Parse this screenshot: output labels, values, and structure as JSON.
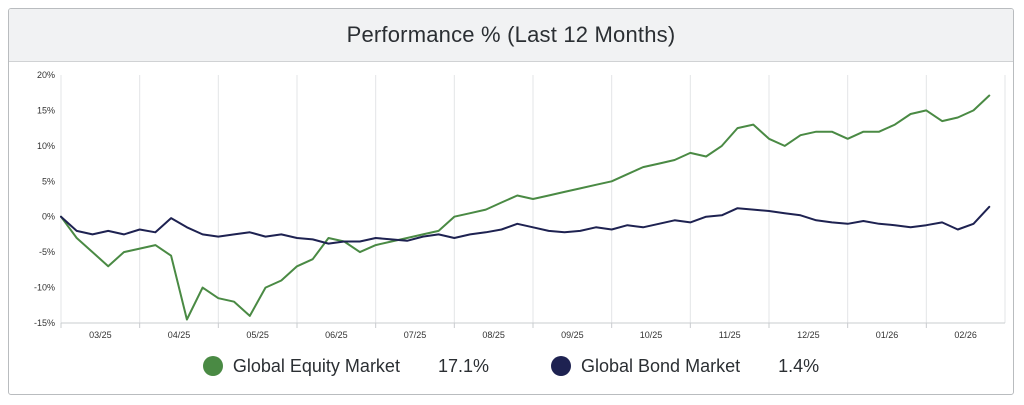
{
  "chart_data": {
    "type": "line",
    "title": "Performance % (Last 12 Months)",
    "xlabel": "",
    "ylabel": "",
    "ylim": [
      -15,
      20
    ],
    "yticks": [
      "20%",
      "15%",
      "10%",
      "5%",
      "0%",
      "-5%",
      "-10%",
      "-15%"
    ],
    "ytick_values": [
      20,
      15,
      10,
      5,
      0,
      -5,
      -10,
      -15
    ],
    "xtick_labels": [
      "03/25",
      "04/25",
      "05/25",
      "06/25",
      "07/25",
      "08/25",
      "09/25",
      "10/25",
      "11/25",
      "12/25",
      "01/26",
      "02/26"
    ],
    "grid": "vertical",
    "legend_position": "bottom",
    "series": [
      {
        "name": "Global Equity Market",
        "color": "#4a8a44",
        "final_label": "17.1%",
        "x": [
          0,
          0.2,
          0.4,
          0.6,
          0.8,
          1.0,
          1.2,
          1.4,
          1.6,
          1.8,
          2.0,
          2.2,
          2.4,
          2.6,
          2.8,
          3.0,
          3.2,
          3.4,
          3.6,
          3.8,
          4.0,
          4.2,
          4.4,
          4.6,
          4.8,
          5.0,
          5.2,
          5.4,
          5.6,
          5.8,
          6.0,
          6.2,
          6.4,
          6.6,
          6.8,
          7.0,
          7.2,
          7.4,
          7.6,
          7.8,
          8.0,
          8.2,
          8.4,
          8.6,
          8.8,
          9.0,
          9.2,
          9.4,
          9.6,
          9.8,
          10.0,
          10.2,
          10.4,
          10.6,
          10.8,
          11.0,
          11.2,
          11.4,
          11.6,
          11.8
        ],
        "y": [
          0,
          -3,
          -5,
          -7,
          -5,
          -4.5,
          -4,
          -5.5,
          -14.5,
          -10,
          -11.5,
          -12,
          -14,
          -10,
          -9,
          -7,
          -6,
          -3,
          -3.5,
          -5,
          -4,
          -3.5,
          -3,
          -2.5,
          -2,
          0,
          0.5,
          1,
          2,
          3,
          2.5,
          3,
          3.5,
          4,
          4.5,
          5,
          6,
          7,
          7.5,
          8,
          9,
          8.5,
          10,
          12.5,
          13,
          11,
          10,
          11.5,
          12,
          12,
          11,
          12,
          12,
          13,
          14.5,
          15,
          13.5,
          14,
          15,
          17.1
        ]
      },
      {
        "name": "Global Bond Market",
        "color": "#1e2251",
        "final_label": "1.4%",
        "x": [
          0,
          0.2,
          0.4,
          0.6,
          0.8,
          1.0,
          1.2,
          1.4,
          1.6,
          1.8,
          2.0,
          2.2,
          2.4,
          2.6,
          2.8,
          3.0,
          3.2,
          3.4,
          3.6,
          3.8,
          4.0,
          4.2,
          4.4,
          4.6,
          4.8,
          5.0,
          5.2,
          5.4,
          5.6,
          5.8,
          6.0,
          6.2,
          6.4,
          6.6,
          6.8,
          7.0,
          7.2,
          7.4,
          7.6,
          7.8,
          8.0,
          8.2,
          8.4,
          8.6,
          8.8,
          9.0,
          9.2,
          9.4,
          9.6,
          9.8,
          10.0,
          10.2,
          10.4,
          10.6,
          10.8,
          11.0,
          11.2,
          11.4,
          11.6,
          11.8
        ],
        "y": [
          0,
          -2,
          -2.5,
          -2,
          -2.5,
          -1.8,
          -2.2,
          -0.2,
          -1.5,
          -2.5,
          -2.8,
          -2.5,
          -2.2,
          -2.8,
          -2.5,
          -3,
          -3.2,
          -3.8,
          -3.5,
          -3.5,
          -3,
          -3.2,
          -3.4,
          -2.8,
          -2.5,
          -3,
          -2.5,
          -2.2,
          -1.8,
          -1,
          -1.5,
          -2,
          -2.2,
          -2,
          -1.5,
          -1.8,
          -1.2,
          -1.5,
          -1,
          -0.5,
          -0.8,
          0,
          0.2,
          1.2,
          1,
          0.8,
          0.5,
          0.2,
          -0.5,
          -0.8,
          -1,
          -0.6,
          -1,
          -1.2,
          -1.5,
          -1.2,
          -0.8,
          -1.8,
          -1,
          1.4
        ]
      }
    ]
  }
}
